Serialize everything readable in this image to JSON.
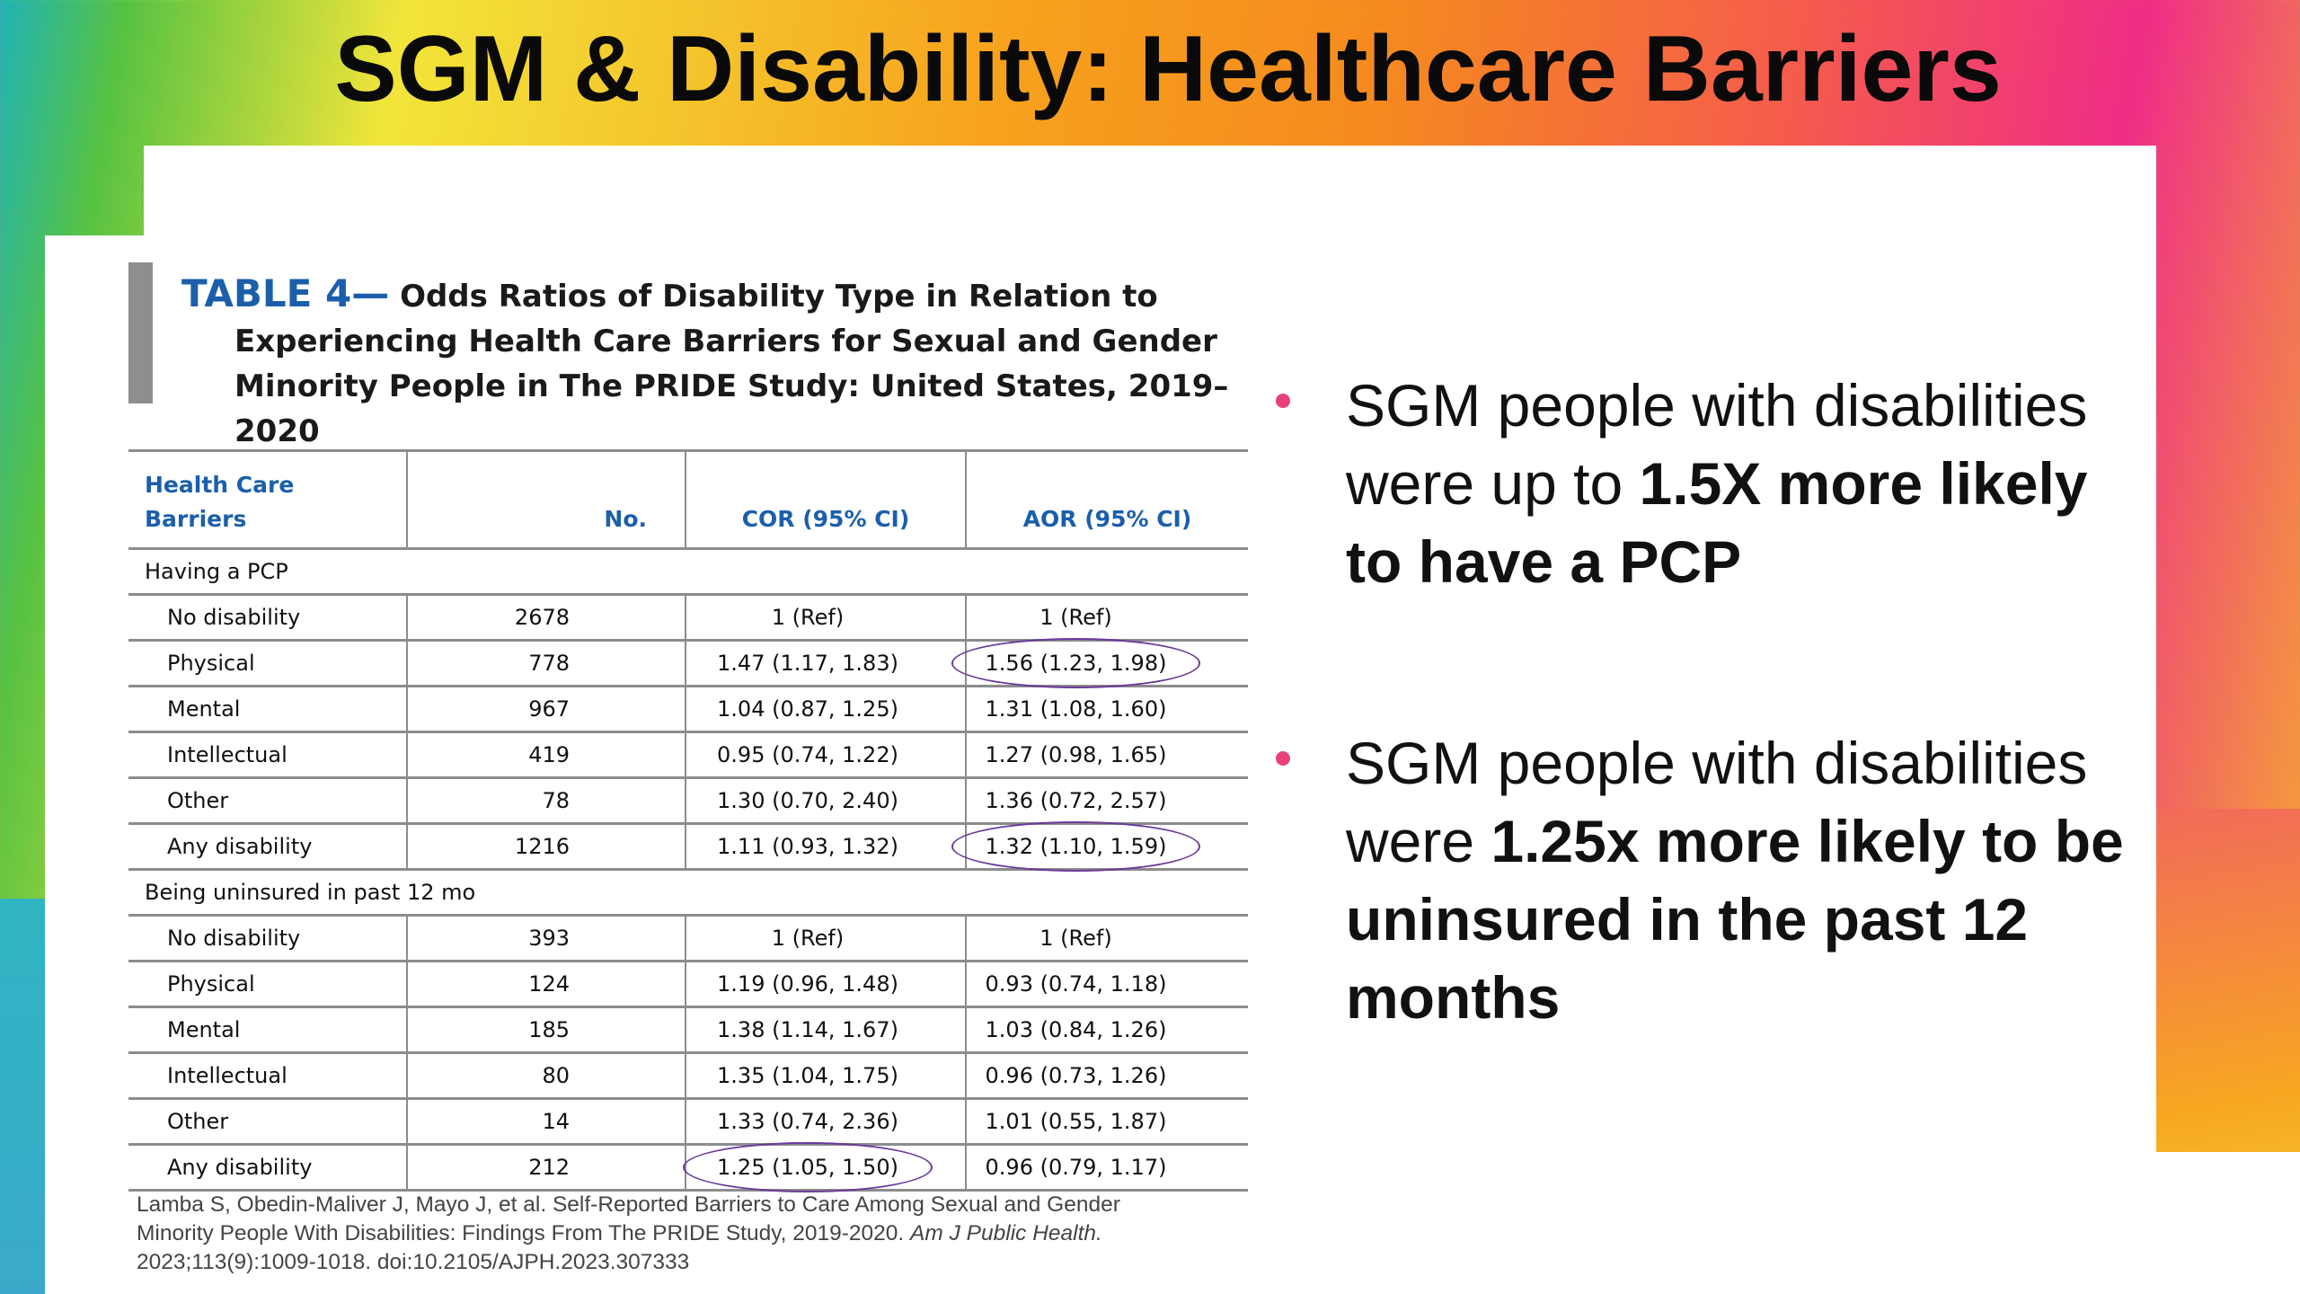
{
  "title": "SGM & Disability: Healthcare Barriers",
  "table": {
    "label": "TABLE 4—",
    "heading_line1": "Odds Ratios of Disability Type in Relation to",
    "heading_line2": "Experiencing Health Care Barriers for Sexual and Gender",
    "heading_line3": "Minority People in The PRIDE Study: United States, 2019–2020",
    "columns": {
      "barriers_line1": "Health Care",
      "barriers_line2": "Barriers",
      "no": "No.",
      "cor": "COR (95% CI)",
      "aor": "AOR (95% CI)"
    },
    "sections": [
      {
        "name": "Having a PCP",
        "rows": [
          {
            "label": "No disability",
            "no": "2678",
            "cor": "1 (Ref)",
            "aor": "1 (Ref)"
          },
          {
            "label": "Physical",
            "no": "778",
            "cor": "1.47 (1.17, 1.83)",
            "aor": "1.56 (1.23, 1.98)"
          },
          {
            "label": "Mental",
            "no": "967",
            "cor": "1.04 (0.87, 1.25)",
            "aor": "1.31 (1.08, 1.60)"
          },
          {
            "label": "Intellectual",
            "no": "419",
            "cor": "0.95 (0.74, 1.22)",
            "aor": "1.27 (0.98, 1.65)"
          },
          {
            "label": "Other",
            "no": "78",
            "cor": "1.30 (0.70, 2.40)",
            "aor": "1.36 (0.72, 2.57)"
          },
          {
            "label": "Any disability",
            "no": "1216",
            "cor": "1.11 (0.93, 1.32)",
            "aor": "1.32 (1.10, 1.59)"
          }
        ]
      },
      {
        "name": "Being uninsured in past 12 mo",
        "rows": [
          {
            "label": "No disability",
            "no": "393",
            "cor": "1 (Ref)",
            "aor": "1 (Ref)"
          },
          {
            "label": "Physical",
            "no": "124",
            "cor": "1.19 (0.96, 1.48)",
            "aor": "0.93 (0.74, 1.18)"
          },
          {
            "label": "Mental",
            "no": "185",
            "cor": "1.38 (1.14, 1.67)",
            "aor": "1.03 (0.84, 1.26)"
          },
          {
            "label": "Intellectual",
            "no": "80",
            "cor": "1.35 (1.04, 1.75)",
            "aor": "0.96 (0.73, 1.26)"
          },
          {
            "label": "Other",
            "no": "14",
            "cor": "1.33 (0.74, 2.36)",
            "aor": "1.01 (0.55, 1.87)"
          },
          {
            "label": "Any disability",
            "no": "212",
            "cor": "1.25 (1.05, 1.50)",
            "aor": "0.96 (0.79, 1.17)"
          }
        ]
      }
    ]
  },
  "citation": {
    "line1": "Lamba S, Obedin-Maliver J, Mayo J, et al. Self-Reported Barriers to Care Among Sexual and Gender",
    "line2_plain": "Minority People With Disabilities: Findings From The PRIDE Study, 2019-2020. ",
    "line2_italic": "Am J Public Health.",
    "line3": "2023;113(9):1009-1018. doi:10.2105/AJPH.2023.307333"
  },
  "bullets": [
    {
      "plain": "SGM people with disabilities were up to ",
      "bold": "1.5X more likely to have a PCP"
    },
    {
      "plain": "SGM people with disabilities were ",
      "bold": "1.25x more likely to be uninsured in the past 12 months"
    }
  ],
  "colors": {
    "bullet_dot": "#e8407a",
    "table_blue": "#1b5fab",
    "highlight_ellipse": "#6a3a9a"
  }
}
